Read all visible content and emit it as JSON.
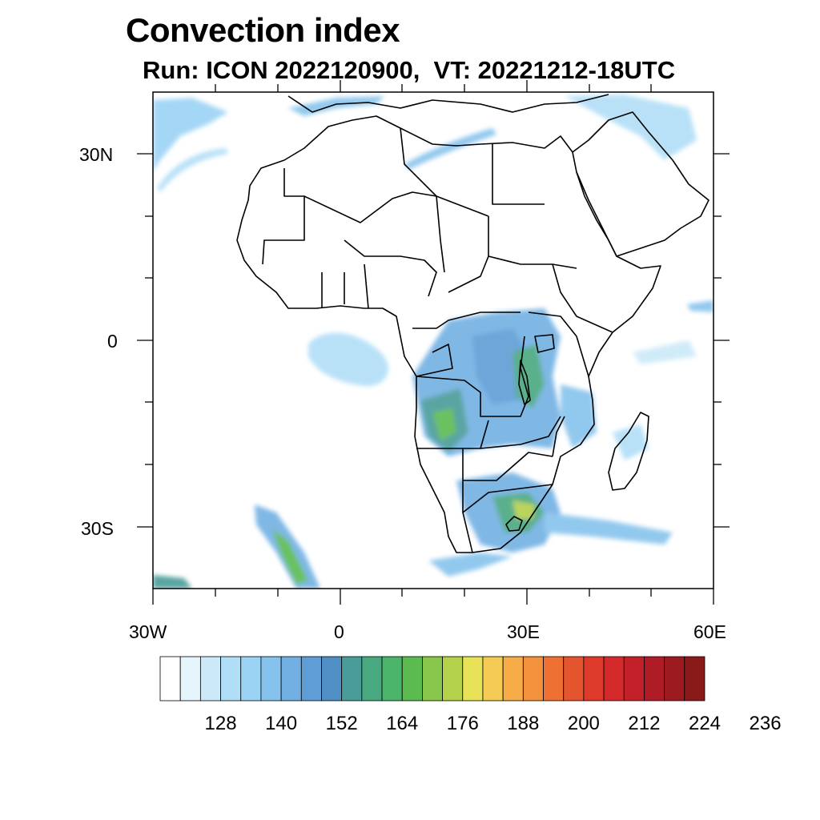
{
  "title": "Convection index",
  "subtitle": "Run: ICON 2022120900,  VT: 20221212-18UTC",
  "map": {
    "lon_range": [
      -30,
      60
    ],
    "lat_range": [
      -40,
      40
    ],
    "lat_labels": [
      "30N",
      "0",
      "30S"
    ],
    "lon_labels": [
      "30W",
      "0",
      "30E",
      "60E"
    ]
  },
  "legend": {
    "colors": [
      "#ffffff",
      "#e6f4fc",
      "#cbe9f8",
      "#b1def7",
      "#9bd3f4",
      "#86c3ec",
      "#72b0e3",
      "#5e9dd6",
      "#4f8fc4",
      "#4a9c99",
      "#48a87f",
      "#4ab56a",
      "#5cbb4f",
      "#89c64c",
      "#b4d14b",
      "#e8e258",
      "#f5cb55",
      "#f6ad48",
      "#f4913d",
      "#ee7133",
      "#e4552d",
      "#dd3a2b",
      "#d42a2c",
      "#c4202a",
      "#b01c25",
      "#9c1a20",
      "#8a1a1a"
    ],
    "labels": [
      "128",
      "140",
      "152",
      "164",
      "176",
      "188",
      "200",
      "212",
      "224",
      "236"
    ]
  }
}
